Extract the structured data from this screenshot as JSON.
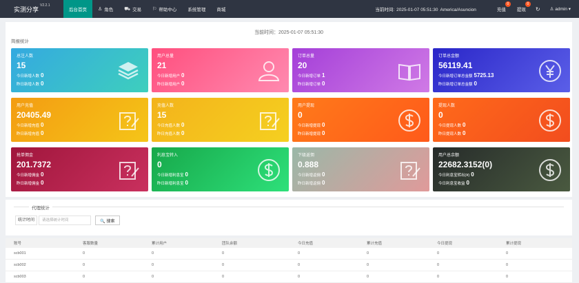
{
  "app": {
    "title": "实测分享",
    "version": "V2.2.1"
  },
  "nav": [
    {
      "icon": "",
      "label": "后台首页",
      "active": true
    },
    {
      "icon": "♙",
      "label": "角色"
    },
    {
      "icon": "⛟",
      "label": "交易"
    },
    {
      "icon": "⚐",
      "label": "帮助中心"
    },
    {
      "icon": "",
      "label": "系统管理"
    },
    {
      "icon": "",
      "label": "商城"
    }
  ],
  "header": {
    "time_label": "当前时间:",
    "time_value": "2025-01-07 05:51:30",
    "timezone": "America/Asuncion",
    "recharge_label": "充值",
    "recharge_badge": "0",
    "withdraw_label": "提现",
    "withdraw_badge": "0",
    "refresh_icon": "↻",
    "user_label": "♙ admin ▾"
  },
  "stats": {
    "current_time": "当前时间：2025-01-07 05:51:30",
    "section_title": "简报统计",
    "cards": [
      {
        "label": "总注人数",
        "value": "15",
        "line1": "今日新增人数",
        "line1_val": "0",
        "line2": "昨日新增人数",
        "line2_val": "0",
        "icon": "layers-icon",
        "gradient": "linear-gradient(135deg,#34a9e0,#3ecfbd)"
      },
      {
        "label": "用户总量",
        "value": "21",
        "line1": "今日新增用户",
        "line1_val": "0",
        "line2": "昨日新增用户",
        "line2_val": "0",
        "icon": "user-icon",
        "gradient": "linear-gradient(135deg,#ff4f7e,#ff8ab0)"
      },
      {
        "label": "订单总量",
        "value": "20",
        "line1": "今日新增订单",
        "line1_val": "1",
        "line2": "昨日新增订单",
        "line2_val": "0",
        "icon": "book-icon",
        "gradient": "linear-gradient(135deg,#a43fd8,#d07ae6)"
      },
      {
        "label": "订单总金额",
        "value": "56119.41",
        "line1": "今日新增订单总金额",
        "line1_val": "5725.13",
        "line2": "昨日新增订单总金额",
        "line2_val": "0",
        "icon": "yen-icon",
        "gradient": "linear-gradient(135deg,#2a26c8,#5b5fe8)"
      },
      {
        "label": "用户充值",
        "value": "20405.49",
        "line1": "今日新增充值",
        "line1_val": "0",
        "line2": "昨日新增充值",
        "line2_val": "0",
        "icon": "edit-icon",
        "gradient": "linear-gradient(135deg,#f39c12,#f5c518)"
      },
      {
        "label": "充值人数",
        "value": "15",
        "line1": "今日充值人数",
        "line1_val": "0",
        "line2": "昨日充值人数",
        "line2_val": "0",
        "icon": "edit-icon",
        "gradient": "linear-gradient(135deg,#f3b31b,#f5d020)"
      },
      {
        "label": "用户提现",
        "value": "0",
        "line1": "今日新增提现",
        "line1_val": "0",
        "line2": "昨日新增提现",
        "line2_val": "0",
        "icon": "dollar-icon",
        "gradient": "linear-gradient(135deg,#ff7a1a,#ff5a1a)"
      },
      {
        "label": "提现人数",
        "value": "0",
        "line1": "今日提现人数",
        "line1_val": "0",
        "line2": "昨日提现人数",
        "line2_val": "0",
        "icon": "dollar-icon",
        "gradient": "linear-gradient(135deg,#ff6a1a,#f24d1e)"
      },
      {
        "label": "抢单佣金",
        "value": "201.7372",
        "line1": "今日新增佣金",
        "line1_val": "0",
        "line2": "昨日新增佣金",
        "line2_val": "0",
        "icon": "edit-icon",
        "gradient": "linear-gradient(135deg,#a0163c,#c9305e)"
      },
      {
        "label": "利息宝转入",
        "value": "0",
        "line1": "今日新增利息宝",
        "line1_val": "0",
        "line2": "昨日新增利息宝",
        "line2_val": "0",
        "icon": "dollar-icon",
        "gradient": "linear-gradient(135deg,#17a84a,#2ee07a)"
      },
      {
        "label": "下级返佣",
        "value": "0.888",
        "line1": "今日新增返佣",
        "line1_val": "0",
        "line2": "昨日新增返佣",
        "line2_val": "0",
        "icon": "edit-icon",
        "gradient": "linear-gradient(135deg,#9ab8a8,#e09a9a)"
      },
      {
        "label": "用户总余额",
        "value": "22682.3152(0)",
        "line1": "今日利息宝转出(¥)",
        "line1_val": "0",
        "line2": "今日利息宝收益",
        "line2_val": "0",
        "icon": "dollar-icon",
        "gradient": "linear-gradient(135deg,#262b2a,#4a5a40)"
      }
    ]
  },
  "filter": {
    "legend": "代理统计",
    "label": "统计时间",
    "placeholder": "请选择统计时间",
    "search_label": "🔍 搜索"
  },
  "table": {
    "headers": [
      "账号",
      "客服数量",
      "累计用户",
      "团队余额",
      "今日充值",
      "累计充值",
      "今日提现",
      "累计提现"
    ],
    "rows": [
      [
        "scb001",
        "0",
        "0",
        "0",
        "0",
        "0",
        "0",
        "0"
      ],
      [
        "scb002",
        "0",
        "0",
        "0",
        "0",
        "0",
        "0",
        "0"
      ],
      [
        "scb003",
        "0",
        "0",
        "0",
        "0",
        "0",
        "0",
        "0"
      ]
    ]
  }
}
